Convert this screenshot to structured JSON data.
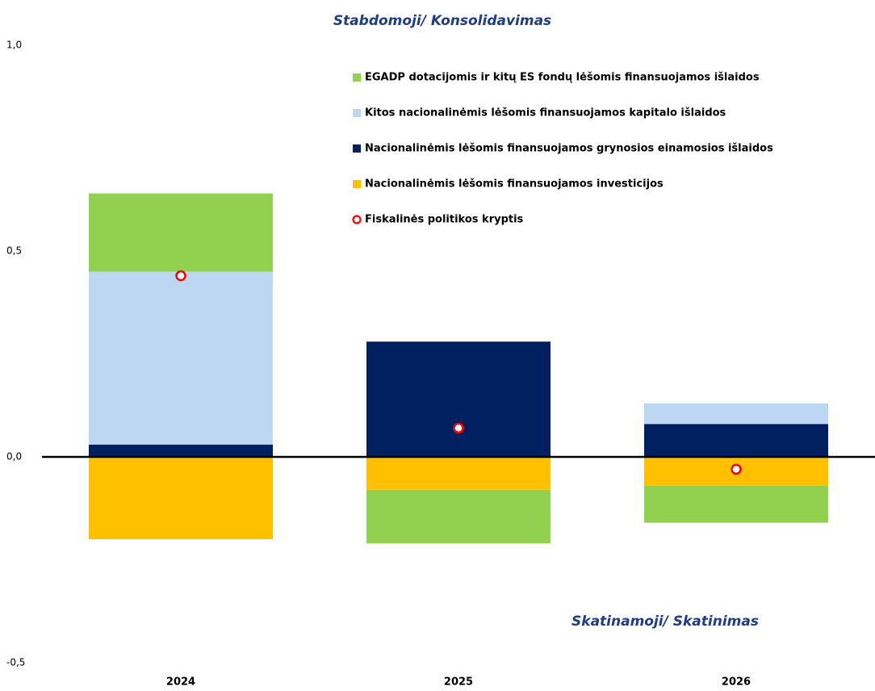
{
  "chart_data": {
    "type": "bar",
    "stacked": true,
    "annotations": [
      "Stabdomoji/ Konsolidavimas",
      "Skatinamoji/ Skatinimas"
    ],
    "categories": [
      "2024",
      "2025",
      "2026"
    ],
    "series": [
      {
        "name": "EGADP dotacijomis ir kitų ES fondų lėšomis finansuojamos išlaidos",
        "color": "#92d050",
        "values": [
          0.19,
          -0.13,
          -0.09
        ]
      },
      {
        "name": "Kitos nacionalinėmis lėšomis finansuojamos kapitalo išlaidos",
        "color": "#bdd7f3",
        "values": [
          0.42,
          0,
          0.05
        ]
      },
      {
        "name": "Nacionalinėmis lėšomis finansuojamos grynosios einamosios išlaidos",
        "color": "#002060",
        "values": [
          0.03,
          0.28,
          0.08
        ]
      },
      {
        "name": "Nacionalinėmis lėšomis finansuojamos investicijos",
        "color": "#ffc000",
        "values": [
          -0.2,
          -0.08,
          -0.07
        ]
      },
      {
        "name": "Fiskalinės politikos kryptis",
        "color": "#ff0000",
        "type": "scatter",
        "values": [
          0.44,
          0.07,
          -0.03
        ]
      }
    ],
    "ylim": [
      -0.5,
      1.0
    ],
    "yticks": [
      {
        "value": -0.5,
        "label": "-0,5"
      },
      {
        "value": 0,
        "label": "0,0"
      },
      {
        "value": 0.5,
        "label": "0,5"
      },
      {
        "value": 1.0,
        "label": "1,0"
      }
    ],
    "grid": false
  }
}
